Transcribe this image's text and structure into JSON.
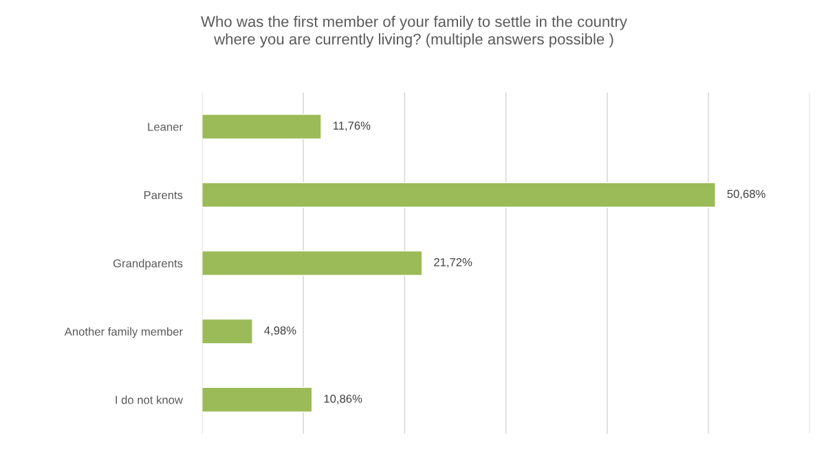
{
  "chart_data": {
    "type": "bar",
    "orientation": "horizontal",
    "title": "Who was the first member of your family to settle in the country\nwhere you are currently living? (multiple answers possible )",
    "categories": [
      "Leaner",
      "Parents",
      "Grandparents",
      "Another family member",
      "I do not know"
    ],
    "values": [
      11.76,
      50.68,
      21.72,
      4.98,
      10.86
    ],
    "value_labels": [
      "11,76%",
      "50,68%",
      "21,72%",
      "4,98%",
      "10,86%"
    ],
    "color": "#9bbb59",
    "xlim": [
      0,
      60
    ],
    "xticks": [
      {
        "value": 0,
        "label": null
      },
      {
        "value": 10,
        "label": null
      },
      {
        "value": 20,
        "label": null
      },
      {
        "value": 30,
        "label": null
      },
      {
        "value": 40,
        "label": null
      },
      {
        "value": 50,
        "label": null
      },
      {
        "value": 60,
        "label": null
      }
    ],
    "tick_labels": "y",
    "grid": "x",
    "legend": false
  }
}
